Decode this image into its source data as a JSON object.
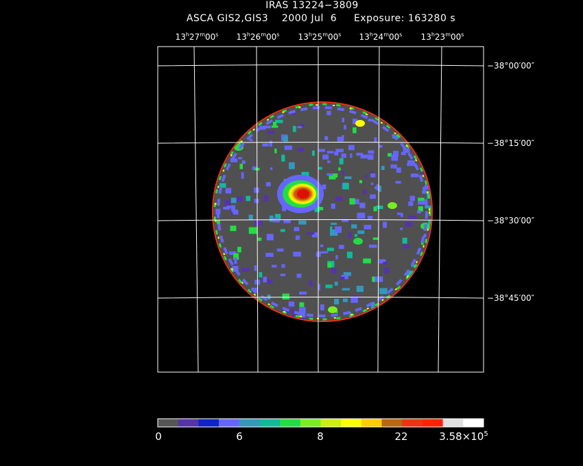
{
  "header": {
    "title": "IRAS 13224−3809",
    "subtitle": "ASCA GIS2,GIS3    2000 Jul  6     Exposure: 163280 s"
  },
  "axes": {
    "ra_labels": [
      {
        "h": "13",
        "m": "27",
        "s": "00"
      },
      {
        "h": "13",
        "m": "26",
        "s": "00"
      },
      {
        "h": "13",
        "m": "25",
        "s": "00"
      },
      {
        "h": "13",
        "m": "24",
        "s": "00"
      },
      {
        "h": "13",
        "m": "23",
        "s": "00"
      }
    ],
    "dec_labels": [
      "−38°00′00″",
      "−38°15′00″",
      "−38°30′00″",
      "−38°45′00″"
    ]
  },
  "colorbar": {
    "colors": [
      "#555555",
      "#5533aa",
      "#1122cc",
      "#6666ff",
      "#3399bb",
      "#11bb99",
      "#22dd44",
      "#77ee22",
      "#ccee11",
      "#ffff00",
      "#ffcc00",
      "#bb6611",
      "#ee3311",
      "#ff2200",
      "#e0e0e0",
      "#ffffff"
    ],
    "labels": [
      "0",
      "6",
      "8",
      "22",
      "3.58×10",
      "5"
    ]
  },
  "image": {
    "background_color": "#000000",
    "frame_color": "#ffffff",
    "grid_color": "#ffffff"
  }
}
